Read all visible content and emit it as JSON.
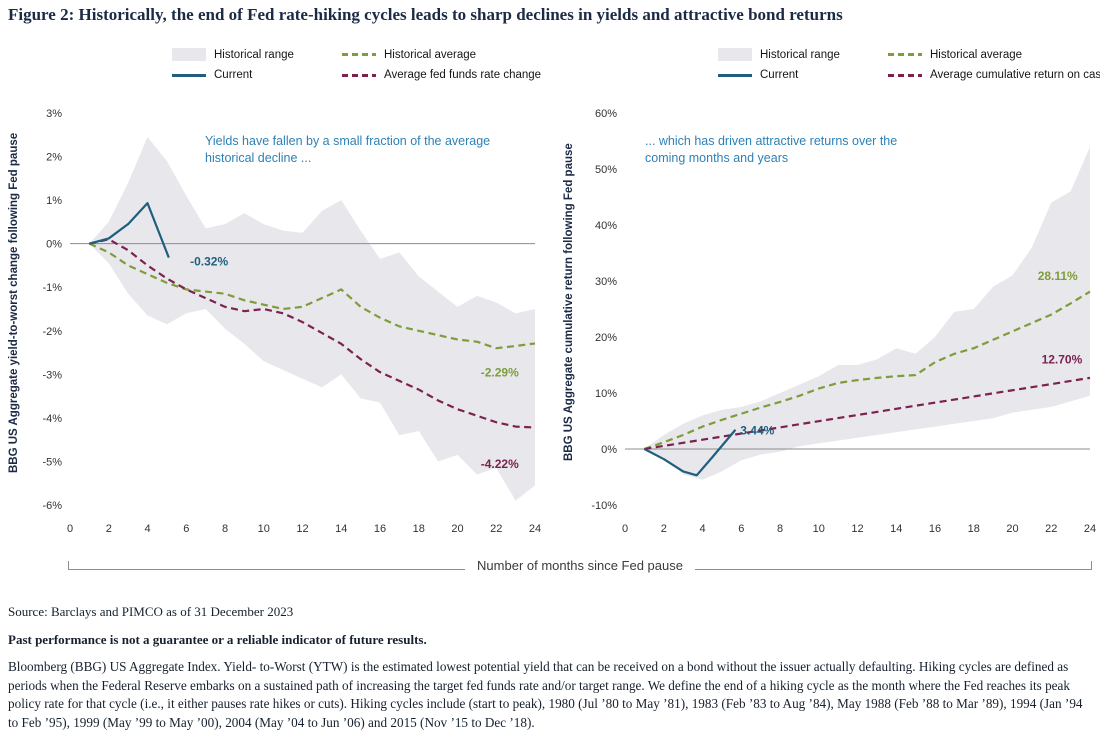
{
  "title": "Figure 2: Historically, the end of Fed rate-hiking cycles leads to sharp declines in yields and attractive bond returns",
  "xaxis_label": "Number of months since Fed pause",
  "colors": {
    "title_navy": "#1b2a45",
    "range_fill": "#e8e8ec",
    "green": "#7f9c3b",
    "blue": "#1f5f7d",
    "maroon": "#7c2150",
    "annotation_blue": "#2e81b6",
    "zero_line": "#8c8c8c",
    "tick_text": "#333333"
  },
  "chart_data": [
    {
      "type": "line",
      "title": "",
      "xlabel": "Number of months since Fed pause",
      "ylabel": "BBG US Aggregate yield-to-worst change following Fed pause",
      "annotation": "Yields have fallen by a small fraction of the average historical decline ...",
      "xlim": [
        0,
        24
      ],
      "ylim": [
        -6,
        3
      ],
      "ytick_step": 1,
      "ytick_suffix": "%",
      "xticks": [
        0,
        2,
        4,
        6,
        8,
        10,
        12,
        14,
        16,
        18,
        20,
        22,
        24
      ],
      "grid": false,
      "legend_position": "top",
      "legend": [
        {
          "label": "Historical range",
          "swatch": "range"
        },
        {
          "label": "Historical average",
          "swatch": "dash-green"
        },
        {
          "label": "Current",
          "swatch": "solid-blue"
        },
        {
          "label": "Average fed funds rate change",
          "swatch": "dash-maroon"
        }
      ],
      "band": {
        "name": "Historical range",
        "x": [
          1,
          2,
          3,
          4,
          5,
          6,
          7,
          8,
          9,
          10,
          11,
          12,
          13,
          14,
          15,
          16,
          17,
          18,
          19,
          20,
          21,
          22,
          23,
          24
        ],
        "upper": [
          0,
          0.5,
          1.4,
          2.45,
          1.9,
          1.1,
          0.35,
          0.45,
          0.7,
          0.45,
          0.3,
          0.25,
          0.75,
          1.0,
          0.3,
          -0.35,
          -0.2,
          -0.75,
          -1.1,
          -1.45,
          -1.2,
          -1.35,
          -1.6,
          -1.5
        ],
        "lower": [
          0,
          -0.45,
          -1.15,
          -1.65,
          -1.85,
          -1.6,
          -1.5,
          -1.95,
          -2.3,
          -2.7,
          -2.9,
          -3.1,
          -3.3,
          -3.0,
          -3.55,
          -3.65,
          -4.4,
          -4.3,
          -5.0,
          -4.85,
          -5.3,
          -5.15,
          -5.9,
          -5.55
        ]
      },
      "series": [
        {
          "key": "historical-average",
          "name": "Historical average",
          "color": "green",
          "dash": true,
          "x": [
            1,
            2,
            3,
            4,
            5,
            6,
            7,
            8,
            9,
            10,
            11,
            12,
            13,
            14,
            15,
            16,
            17,
            18,
            19,
            20,
            21,
            22,
            23,
            24
          ],
          "values": [
            0,
            -0.2,
            -0.5,
            -0.7,
            -0.9,
            -1.05,
            -1.1,
            -1.15,
            -1.3,
            -1.4,
            -1.5,
            -1.45,
            -1.25,
            -1.05,
            -1.45,
            -1.7,
            -1.9,
            -2.0,
            -2.1,
            -2.2,
            -2.25,
            -2.4,
            -2.35,
            -2.29
          ]
        },
        {
          "key": "average-fed-funds-rate-change",
          "name": "Average fed funds rate change",
          "color": "maroon",
          "dash": true,
          "x": [
            1,
            2,
            3,
            4,
            5,
            6,
            7,
            8,
            9,
            10,
            11,
            12,
            13,
            14,
            15,
            16,
            17,
            18,
            19,
            20,
            21,
            22,
            23,
            24
          ],
          "values": [
            0,
            0.1,
            -0.15,
            -0.5,
            -0.8,
            -1.05,
            -1.25,
            -1.45,
            -1.55,
            -1.5,
            -1.6,
            -1.8,
            -2.05,
            -2.3,
            -2.65,
            -2.95,
            -3.15,
            -3.35,
            -3.6,
            -3.8,
            -3.95,
            -4.1,
            -4.2,
            -4.22
          ]
        },
        {
          "key": "current",
          "name": "Current",
          "color": "blue",
          "dash": false,
          "x": [
            1,
            2,
            3,
            4,
            5.1
          ],
          "values": [
            0,
            0.12,
            0.45,
            0.93,
            -0.32
          ]
        }
      ],
      "value_labels": [
        {
          "text": "-0.32%",
          "x": 6.2,
          "y": -0.5,
          "color": "blue",
          "anchor": "start"
        },
        {
          "text": "-2.29%",
          "x": 21.2,
          "y": -3.05,
          "color": "green",
          "anchor": "start"
        },
        {
          "text": "-4.22%",
          "x": 21.2,
          "y": -5.15,
          "color": "maroon",
          "anchor": "start"
        }
      ]
    },
    {
      "type": "line",
      "title": "",
      "xlabel": "Number of months since Fed pause",
      "ylabel": "BBG US Aggregate cumulative return following Fed pause",
      "annotation": "... which has driven attractive returns over the coming months and years",
      "xlim": [
        0,
        24
      ],
      "ylim": [
        -10,
        60
      ],
      "ytick_step": 10,
      "ytick_suffix": "%",
      "xticks": [
        0,
        2,
        4,
        6,
        8,
        10,
        12,
        14,
        16,
        18,
        20,
        22,
        24
      ],
      "grid": false,
      "legend_position": "top",
      "legend": [
        {
          "label": "Historical range",
          "swatch": "range"
        },
        {
          "label": "Historical average",
          "swatch": "dash-green"
        },
        {
          "label": "Current",
          "swatch": "solid-blue"
        },
        {
          "label": "Average cumulative return on cash",
          "swatch": "dash-maroon"
        }
      ],
      "band": {
        "name": "Historical range",
        "x": [
          1,
          2,
          3,
          4,
          5,
          6,
          7,
          8,
          9,
          10,
          11,
          12,
          13,
          14,
          15,
          16,
          17,
          18,
          19,
          20,
          21,
          22,
          23,
          24
        ],
        "upper": [
          0,
          2.5,
          4.5,
          6.0,
          7.0,
          7.5,
          8.5,
          10.0,
          11.5,
          13.0,
          15.0,
          15.0,
          16.0,
          18.0,
          17.0,
          20.0,
          24.5,
          25.0,
          29.0,
          31.0,
          36.0,
          44.0,
          46.0,
          54.0
        ],
        "lower": [
          0,
          -1.5,
          -4.5,
          -5.5,
          -4.0,
          -2.0,
          -1.0,
          -0.5,
          0.5,
          1.0,
          1.5,
          2.0,
          2.5,
          3.0,
          3.5,
          4.0,
          4.5,
          5.0,
          5.5,
          6.5,
          7.0,
          7.5,
          8.5,
          9.5
        ]
      },
      "series": [
        {
          "key": "historical-average",
          "name": "Historical average",
          "color": "green",
          "dash": true,
          "x": [
            1,
            2,
            3,
            4,
            5,
            6,
            7,
            8,
            9,
            10,
            11,
            12,
            13,
            14,
            15,
            16,
            17,
            18,
            19,
            20,
            21,
            22,
            23,
            24
          ],
          "values": [
            0,
            1.2,
            2.5,
            4.0,
            5.2,
            6.3,
            7.4,
            8.4,
            9.5,
            10.8,
            11.8,
            12.3,
            12.7,
            13.0,
            13.2,
            15.5,
            17.0,
            18.0,
            19.5,
            21.0,
            22.5,
            24.0,
            26.0,
            28.11
          ]
        },
        {
          "key": "average-cumulative-return-on-cash",
          "name": "Average cumulative return on cash",
          "color": "maroon",
          "dash": true,
          "x": [
            1,
            2,
            3,
            4,
            5,
            6,
            7,
            8,
            9,
            10,
            11,
            12,
            13,
            14,
            15,
            16,
            17,
            18,
            19,
            20,
            21,
            22,
            23,
            24
          ],
          "values": [
            0,
            0.55,
            1.1,
            1.66,
            2.21,
            2.76,
            3.31,
            3.86,
            4.42,
            4.97,
            5.52,
            6.07,
            6.62,
            7.18,
            7.73,
            8.28,
            8.83,
            9.38,
            9.94,
            10.49,
            11.04,
            11.59,
            12.15,
            12.7
          ]
        },
        {
          "key": "current",
          "name": "Current",
          "color": "blue",
          "dash": false,
          "x": [
            1,
            2,
            3,
            3.7,
            4.5,
            5.7
          ],
          "values": [
            0,
            -1.8,
            -4.0,
            -4.7,
            -1.5,
            3.44
          ]
        }
      ],
      "value_labels": [
        {
          "text": "3.44%",
          "x": 5.95,
          "y": 2.6,
          "color": "blue",
          "anchor": "start"
        },
        {
          "text": "28.11%",
          "x": 21.3,
          "y": 30.2,
          "color": "green",
          "anchor": "start"
        },
        {
          "text": "12.70%",
          "x": 21.5,
          "y": 15.3,
          "color": "maroon",
          "anchor": "start"
        }
      ]
    }
  ],
  "footer": {
    "source": "Source: Barclays and PIMCO as of 31 December 2023",
    "disclaimer": "Past performance is not a guarantee or a reliable indicator of future results.",
    "note": "Bloomberg (BBG) US Aggregate Index. Yield- to-Worst (YTW) is the estimated lowest potential yield that can be received on a bond without the issuer actually defaulting. Hiking cycles are defined as periods when the Federal Reserve embarks on a sustained path of increasing the target fed funds rate and/or target range. We define the end of a hiking cycle as the month where the Fed reaches its peak policy rate for that cycle (i.e., it either pauses rate hikes or cuts). Hiking cycles include (start to peak), 1980 (Jul ’80 to May ’81), 1983 (Feb ’83 to Aug ’84), May 1988 (Feb ’88 to Mar ’89), 1994 (Jan ’94 to Feb ’95), 1999 (May ’99 to May ’00), 2004 (May ’04 to Jun ’06) and 2015 (Nov ’15 to Dec ’18)."
  }
}
